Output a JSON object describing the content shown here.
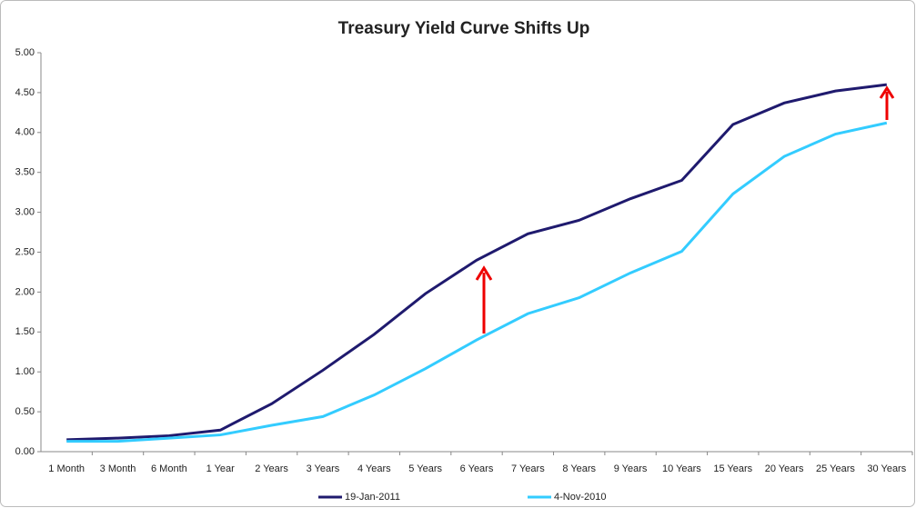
{
  "chart_data": {
    "type": "line",
    "title": "Treasury Yield Curve Shifts Up",
    "categories": [
      "1 Month",
      "3 Month",
      "6 Month",
      "1 Year",
      "2 Years",
      "3 Years",
      "4 Years",
      "5 Years",
      "6 Years",
      "7 Years",
      "8 Years",
      "9 Years",
      "10 Years",
      "15 Years",
      "20 Years",
      "25 Years",
      "30 Years"
    ],
    "series": [
      {
        "name": "19-Jan-2011",
        "color": "#1f1a6e",
        "values": [
          0.15,
          0.17,
          0.2,
          0.27,
          0.6,
          1.02,
          1.47,
          1.98,
          2.4,
          2.73,
          2.9,
          3.17,
          3.4,
          4.1,
          4.37,
          4.52,
          4.6
        ]
      },
      {
        "name": "4-Nov-2010",
        "color": "#33ccff",
        "values": [
          0.13,
          0.13,
          0.17,
          0.21,
          0.33,
          0.44,
          0.71,
          1.04,
          1.4,
          1.73,
          1.93,
          2.24,
          2.51,
          3.23,
          3.7,
          3.98,
          4.12
        ]
      }
    ],
    "ylim": [
      0,
      5
    ],
    "yticks": [
      {
        "value": 0,
        "label": "0.00"
      },
      {
        "value": 0.5,
        "label": "0.50"
      },
      {
        "value": 1,
        "label": "1.00"
      },
      {
        "value": 1.5,
        "label": "1.50"
      },
      {
        "value": 2,
        "label": "2.00"
      },
      {
        "value": 2.5,
        "label": "2.50"
      },
      {
        "value": 3,
        "label": "3.00"
      },
      {
        "value": 3.5,
        "label": "3.50"
      },
      {
        "value": 4,
        "label": "4.00"
      },
      {
        "value": 4.5,
        "label": "4.50"
      },
      {
        "value": 5,
        "label": "5.00"
      }
    ],
    "grid": false,
    "legend": "bottom"
  }
}
